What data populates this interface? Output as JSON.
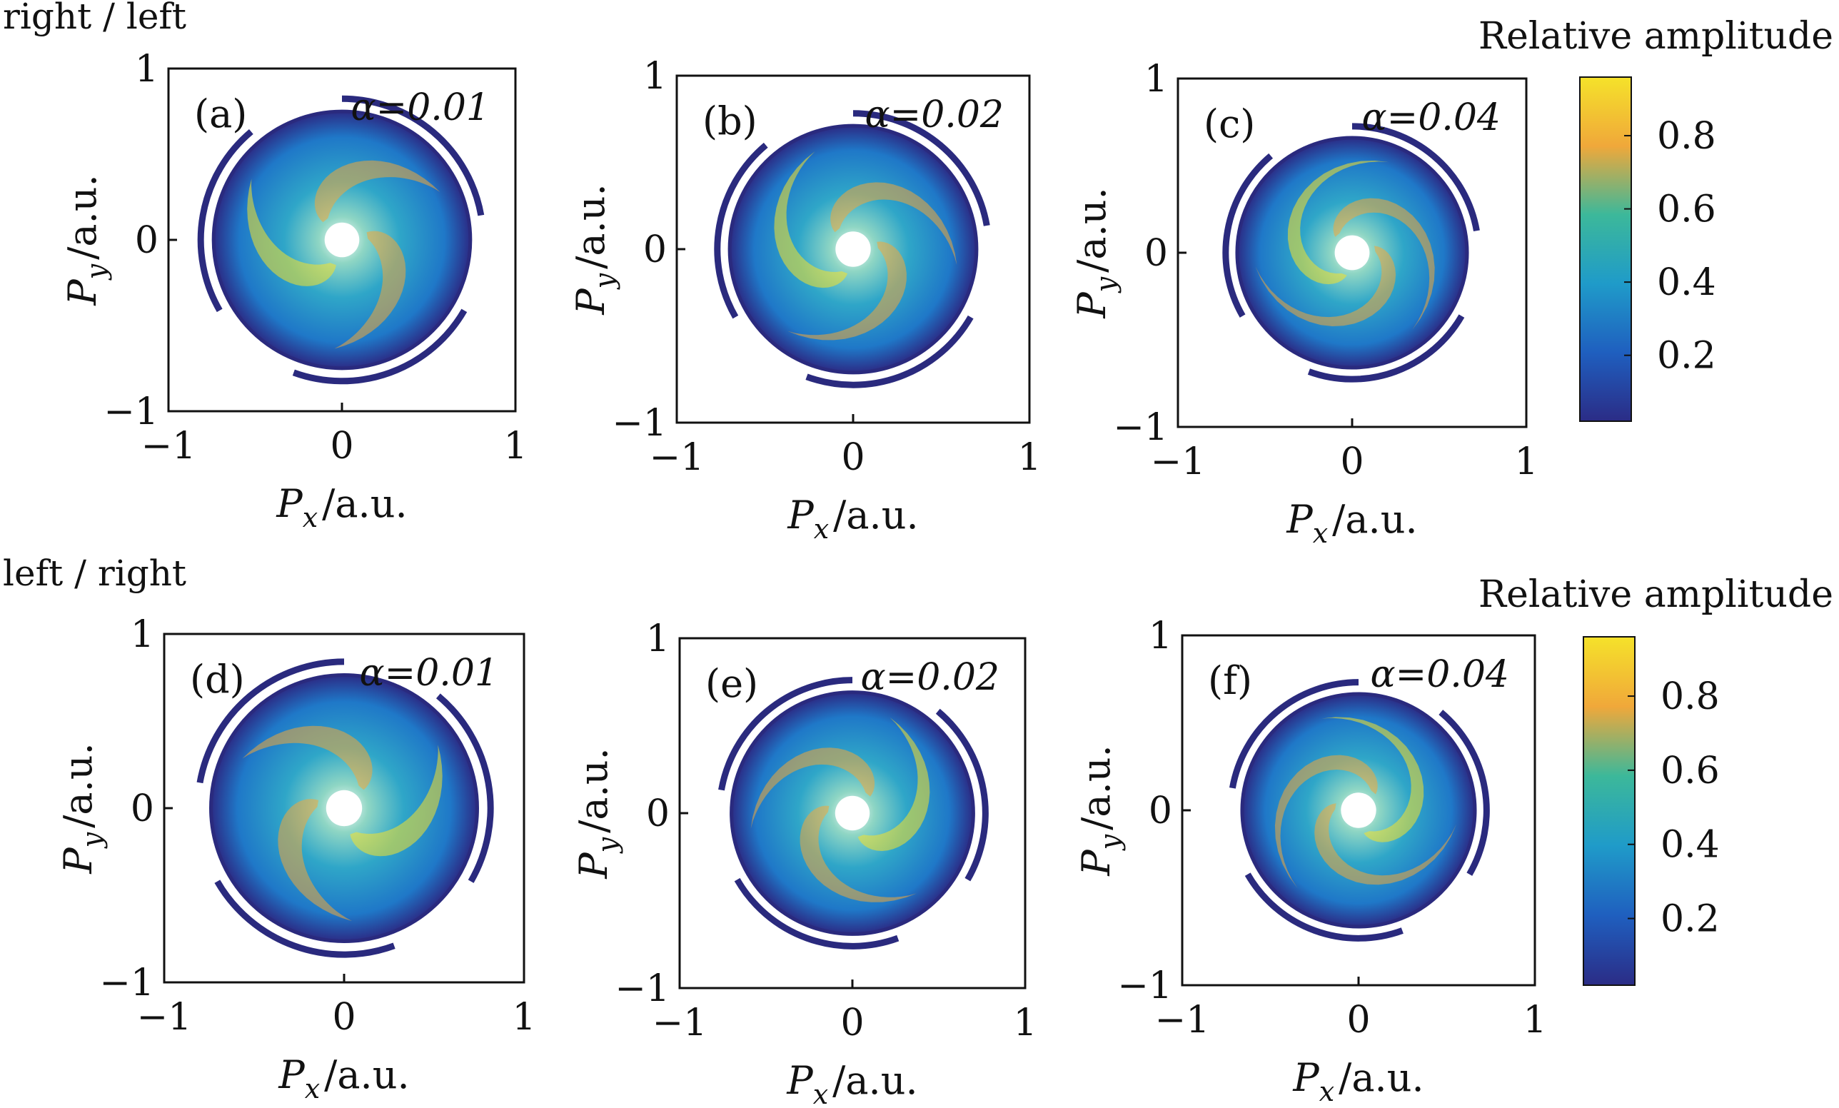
{
  "rows": [
    {
      "title": "right / left",
      "colorbar": {
        "title": "Relative amplitude",
        "ticks": [
          "0.8",
          "0.6",
          "0.4",
          "0.2"
        ],
        "values": [
          0.8,
          0.6,
          0.4,
          0.2
        ],
        "range": [
          0.02,
          0.96
        ]
      },
      "panels": [
        {
          "label": "(a)",
          "alpha_text": "α=0.01"
        },
        {
          "label": "(b)",
          "alpha_text": "α=0.02"
        },
        {
          "label": "(c)",
          "alpha_text": "α=0.04"
        }
      ]
    },
    {
      "title": "left / right",
      "colorbar": {
        "title": "Relative amplitude",
        "ticks": [
          "0.8",
          "0.6",
          "0.4",
          "0.2"
        ],
        "values": [
          0.8,
          0.6,
          0.4,
          0.2
        ],
        "range": [
          0.02,
          0.96
        ]
      },
      "panels": [
        {
          "label": "(d)",
          "alpha_text": "α=0.01"
        },
        {
          "label": "(e)",
          "alpha_text": "α=0.02"
        },
        {
          "label": "(f)",
          "alpha_text": "α=0.04"
        }
      ]
    }
  ],
  "axes": {
    "xlabel_main": "P",
    "xlabel_sub": "x",
    "xlabel_unit": "/a.u.",
    "ylabel_main": "P",
    "ylabel_sub": "y",
    "ylabel_unit": "/a.u.",
    "xticks": [
      "−1",
      "0",
      "1"
    ],
    "yticks": [
      "1",
      "0",
      "−1"
    ]
  },
  "colors": {
    "low": "#2b2c86",
    "mid_blue": "#1f7fd0",
    "mid": "#3cb89a",
    "high_orange": "#f0a83a",
    "high": "#f5e22a",
    "contour": "#2a2a7e"
  },
  "chart_data": [
    {
      "type": "heatmap",
      "title": "(a) α=0.01",
      "group": "right / left",
      "alpha": 0.01,
      "xlabel": "Px /a.u.",
      "ylabel": "Py /a.u.",
      "xlim": [
        -1,
        1
      ],
      "ylim": [
        -1,
        1
      ],
      "colorbar_label": "Relative amplitude",
      "crange": [
        0,
        0.96
      ]
    },
    {
      "type": "heatmap",
      "title": "(b) α=0.02",
      "group": "right / left",
      "alpha": 0.02,
      "xlabel": "Px /a.u.",
      "ylabel": "Py /a.u.",
      "xlim": [
        -1,
        1
      ],
      "ylim": [
        -1,
        1
      ],
      "colorbar_label": "Relative amplitude",
      "crange": [
        0,
        0.96
      ]
    },
    {
      "type": "heatmap",
      "title": "(c) α=0.04",
      "group": "right / left",
      "alpha": 0.04,
      "xlabel": "Px /a.u.",
      "ylabel": "Py /a.u.",
      "xlim": [
        -1,
        1
      ],
      "ylim": [
        -1,
        1
      ],
      "colorbar_label": "Relative amplitude",
      "crange": [
        0,
        0.96
      ]
    },
    {
      "type": "heatmap",
      "title": "(d) α=0.01",
      "group": "left / right",
      "alpha": 0.01,
      "xlabel": "Px /a.u.",
      "ylabel": "Py /a.u.",
      "xlim": [
        -1,
        1
      ],
      "ylim": [
        -1,
        1
      ],
      "colorbar_label": "Relative amplitude",
      "crange": [
        0,
        0.96
      ]
    },
    {
      "type": "heatmap",
      "title": "(e) α=0.02",
      "group": "left / right",
      "alpha": 0.02,
      "xlabel": "Px /a.u.",
      "ylabel": "Py /a.u.",
      "xlim": [
        -1,
        1
      ],
      "ylim": [
        -1,
        1
      ],
      "colorbar_label": "Relative amplitude",
      "crange": [
        0,
        0.96
      ]
    },
    {
      "type": "heatmap",
      "title": "(f) α=0.04",
      "group": "left / right",
      "alpha": 0.04,
      "xlabel": "Px /a.u.",
      "ylabel": "Py /a.u.",
      "xlim": [
        -1,
        1
      ],
      "ylim": [
        -1,
        1
      ],
      "colorbar_label": "Relative amplitude",
      "crange": [
        0,
        0.96
      ]
    }
  ]
}
